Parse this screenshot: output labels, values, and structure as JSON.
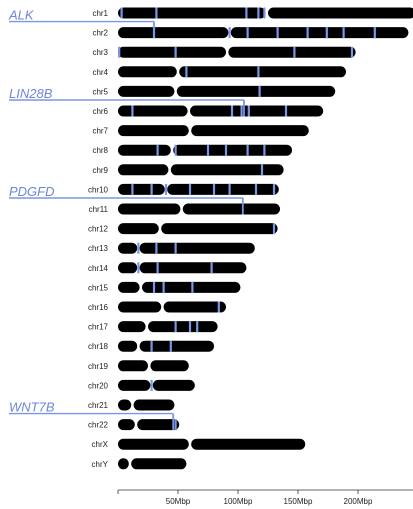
{
  "chart_data": {
    "type": "ideogram",
    "title": "",
    "xlabel": "",
    "ylabel": "",
    "x_unit": "Mbp",
    "xlim": [
      0,
      245
    ],
    "x_ticks": [
      {
        "value": 50,
        "label": "50Mbp"
      },
      {
        "value": 100,
        "label": "100Mbp"
      },
      {
        "value": 150,
        "label": "150Mbp"
      },
      {
        "value": 200,
        "label": "200Mbp"
      }
    ],
    "highlight_color": "#7b96e6",
    "chromosome_color": "#000000",
    "chromosomes": [
      {
        "name": "chr1",
        "length": 248,
        "centromere": 124,
        "marks": [
          3,
          32,
          107,
          117,
          122
        ]
      },
      {
        "name": "chr2",
        "length": 242,
        "centromere": 93,
        "marks": [
          30,
          93,
          108,
          133,
          158,
          174,
          188,
          214
        ]
      },
      {
        "name": "chr3",
        "length": 198,
        "centromere": 91,
        "marks": [
          1,
          48,
          147,
          195
        ]
      },
      {
        "name": "chr4",
        "length": 190,
        "centromere": 50,
        "marks": [
          57,
          117
        ]
      },
      {
        "name": "chr5",
        "length": 181,
        "centromere": 48,
        "marks": [
          118
        ]
      },
      {
        "name": "chr6",
        "length": 171,
        "centromere": 59,
        "marks": [
          12,
          95,
          103,
          109,
          140
        ]
      },
      {
        "name": "chr7",
        "length": 159,
        "centromere": 60,
        "marks": []
      },
      {
        "name": "chr8",
        "length": 145,
        "centromere": 45,
        "marks": [
          33,
          48,
          75,
          90,
          108,
          122
        ]
      },
      {
        "name": "chr9",
        "length": 138,
        "centromere": 43,
        "marks": [
          120
        ]
      },
      {
        "name": "chr10",
        "length": 134,
        "centromere": 40,
        "marks": [
          12,
          28,
          40,
          60,
          80,
          93,
          115,
          130
        ]
      },
      {
        "name": "chr11",
        "length": 135,
        "centromere": 53,
        "marks": []
      },
      {
        "name": "chr12",
        "length": 133,
        "centromere": 35,
        "marks": [
          130
        ]
      },
      {
        "name": "chr13",
        "length": 114,
        "centromere": 17,
        "marks": [
          17,
          32,
          48
        ]
      },
      {
        "name": "chr14",
        "length": 107,
        "centromere": 17,
        "marks": [
          17,
          33,
          78
        ]
      },
      {
        "name": "chr15",
        "length": 102,
        "centromere": 19,
        "marks": [
          30,
          38,
          62
        ]
      },
      {
        "name": "chr16",
        "length": 90,
        "centromere": 37,
        "marks": [
          84
        ]
      },
      {
        "name": "chr17",
        "length": 83,
        "centromere": 24,
        "marks": [
          48,
          60,
          66
        ]
      },
      {
        "name": "chr18",
        "length": 80,
        "centromere": 17,
        "marks": [
          28,
          44
        ]
      },
      {
        "name": "chr19",
        "length": 59,
        "centromere": 26,
        "marks": []
      },
      {
        "name": "chr20",
        "length": 64,
        "centromere": 28,
        "marks": [
          28
        ]
      },
      {
        "name": "chr21",
        "length": 47,
        "centromere": 12,
        "marks": []
      },
      {
        "name": "chr22",
        "length": 51,
        "centromere": 15,
        "marks": [
          48
        ]
      },
      {
        "name": "chrX",
        "length": 156,
        "centromere": 60,
        "marks": []
      },
      {
        "name": "chrY",
        "length": 57,
        "centromere": 10,
        "marks": []
      }
    ],
    "annotations": [
      {
        "gene": "ALK",
        "chromosome": "chr2",
        "position": 30
      },
      {
        "gene": "LIN28B",
        "chromosome": "chr6",
        "position": 105
      },
      {
        "gene": "PDGFD",
        "chromosome": "chr11",
        "position": 104
      },
      {
        "gene": "WNT7B",
        "chromosome": "chr22",
        "position": 46
      }
    ]
  }
}
